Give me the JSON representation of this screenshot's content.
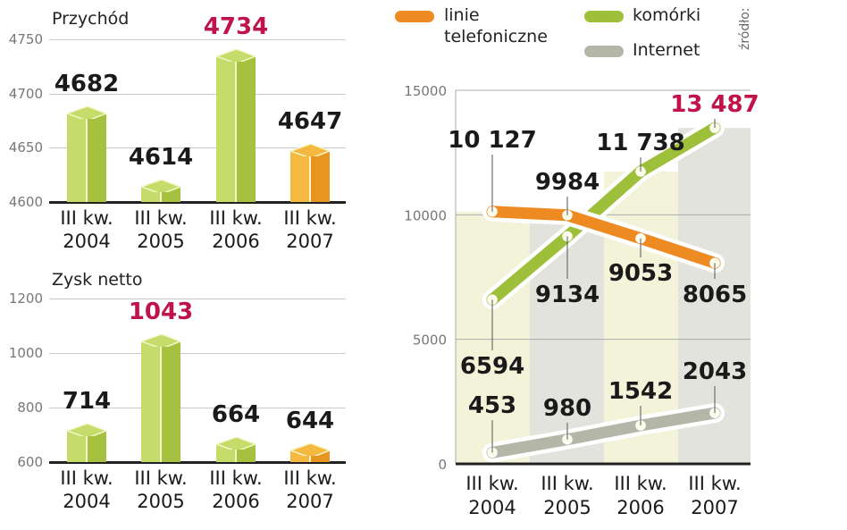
{
  "chart_data": [
    {
      "type": "bar",
      "title": "Przychód",
      "categories": [
        "III kw. 2004",
        "III kw. 2005",
        "III kw. 2006",
        "III kw. 2007"
      ],
      "values": [
        4682,
        4614,
        4734,
        4647
      ],
      "ylim": [
        4600,
        4750
      ],
      "yticks": [
        4600,
        4650,
        4700,
        4750
      ],
      "highlight_index": 2,
      "bar_colors": [
        "#a8c545",
        "#a8c545",
        "#a8c545",
        "#f0a030"
      ],
      "xlabel": "",
      "ylabel": "",
      "grid": true
    },
    {
      "type": "bar",
      "title": "Zysk netto",
      "categories": [
        "III kw. 2004",
        "III kw. 2005",
        "III kw. 2006",
        "III kw. 2007"
      ],
      "values": [
        714,
        1043,
        664,
        644
      ],
      "ylim": [
        600,
        1200
      ],
      "yticks": [
        600,
        800,
        1000,
        1200
      ],
      "highlight_index": 1,
      "bar_colors": [
        "#a8c545",
        "#a8c545",
        "#a8c545",
        "#f0a030"
      ],
      "xlabel": "",
      "ylabel": "",
      "grid": true
    },
    {
      "type": "line",
      "title": "",
      "categories": [
        "III kw. 2004",
        "III kw. 2005",
        "III kw. 2006",
        "III kw. 2007"
      ],
      "series": [
        {
          "name": "linie telefoniczne",
          "color": "#ee8a22",
          "values": [
            10127,
            9984,
            9053,
            8065
          ]
        },
        {
          "name": "komórki",
          "color": "#9dbf3a",
          "values": [
            6594,
            9134,
            11738,
            13487
          ]
        },
        {
          "name": "Internet",
          "color": "#b4b7a8",
          "values": [
            453,
            980,
            1542,
            2043
          ]
        }
      ],
      "value_labels": {
        "linie telefoniczne": [
          "10 127",
          "9984",
          "9053",
          "8065"
        ],
        "komórki": [
          "6594",
          "9134",
          "11 738",
          "13 487"
        ],
        "Internet": [
          "453",
          "980",
          "1542",
          "2043"
        ]
      },
      "highlight": {
        "series": "komórki",
        "index": 3,
        "color": "#c0134a"
      },
      "ylim": [
        0,
        15000
      ],
      "yticks": [
        0,
        5000,
        10000,
        15000
      ],
      "legend_position": "top",
      "xlabel": "",
      "ylabel": "",
      "grid": true
    }
  ],
  "legend": [
    {
      "label_line1": "linie",
      "label_line2": "telefoniczne",
      "color": "#ee8a22"
    },
    {
      "label_line1": "komórki",
      "label_line2": "",
      "color": "#9dbf3a"
    },
    {
      "label_line1": "Internet",
      "label_line2": "",
      "color": "#b4b7a8"
    }
  ],
  "source_label": "źródło:",
  "category_lines": {
    "line1": "III kw.",
    "years": [
      "2004",
      "2005",
      "2006",
      "2007"
    ]
  },
  "colors": {
    "highlight": "#c0134a",
    "green_light": "#c5dc6a",
    "green_dark": "#a6c040",
    "orange_light": "#f5b840",
    "orange_dark": "#e8951f",
    "band_light": "#f3f3da",
    "band_gray": "#e3e3dd"
  }
}
